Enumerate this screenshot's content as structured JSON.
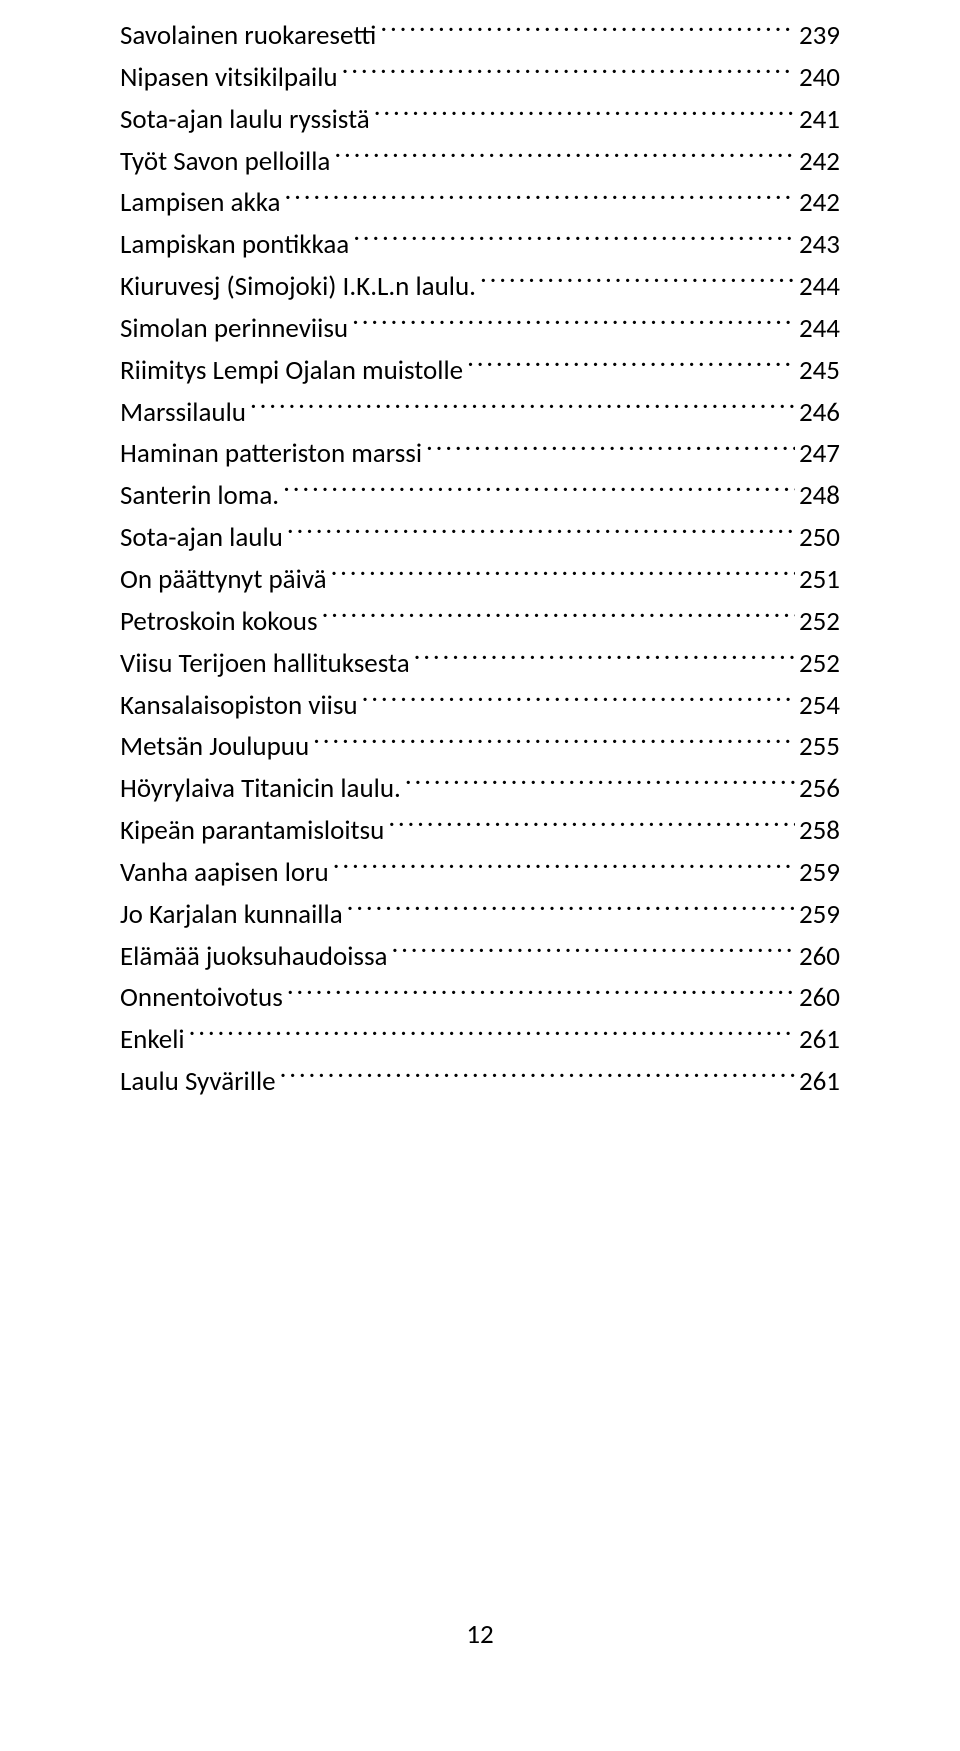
{
  "toc": {
    "entries": [
      {
        "title": "Savolainen ruokaresetti",
        "page": "239"
      },
      {
        "title": "Nipasen vitsikilpailu",
        "page": "240"
      },
      {
        "title": "Sota-ajan laulu ryssistä",
        "page": "241"
      },
      {
        "title": "Työt Savon pelloilla",
        "page": "242"
      },
      {
        "title": "Lampisen akka",
        "page": "242"
      },
      {
        "title": "Lampiskan pontikkaa",
        "page": "243"
      },
      {
        "title": "Kiuruvesj (Simojoki) I.K.L.n laulu.",
        "page": "244"
      },
      {
        "title": "Simolan perinneviisu",
        "page": "244"
      },
      {
        "title": "Riimitys Lempi Ojalan muistolle",
        "page": "245"
      },
      {
        "title": "Marssilaulu",
        "page": "246"
      },
      {
        "title": "Haminan patteriston marssi",
        "page": "247"
      },
      {
        "title": "Santerin loma.",
        "page": "248"
      },
      {
        "title": "Sota-ajan laulu",
        "page": "250"
      },
      {
        "title": "On päättynyt päivä",
        "page": "251"
      },
      {
        "title": "Petroskoin kokous",
        "page": "252"
      },
      {
        "title": "Viisu Terijoen hallituksesta",
        "page": "252"
      },
      {
        "title": "Kansalaisopiston viisu",
        "page": "254"
      },
      {
        "title": "Metsän Joulupuu",
        "page": "255"
      },
      {
        "title": "Höyrylaiva Titanicin laulu.",
        "page": "256"
      },
      {
        "title": "Kipeän parantamisloitsu",
        "page": "258"
      },
      {
        "title": "Vanha aapisen loru",
        "page": "259"
      },
      {
        "title": "Jo Karjalan kunnailla",
        "page": "259"
      },
      {
        "title": "Elämää juoksuhaudoissa",
        "page": "260"
      },
      {
        "title": "Onnentoivotus",
        "page": "260"
      },
      {
        "title": "Enkeli",
        "page": "261"
      },
      {
        "title": "Laulu Syvärille",
        "page": "261"
      }
    ]
  },
  "footer": {
    "page_number": "12"
  },
  "style": {
    "font_family": "Calibri",
    "font_size_pt": 18,
    "text_color": "#000000",
    "background_color": "#ffffff"
  }
}
